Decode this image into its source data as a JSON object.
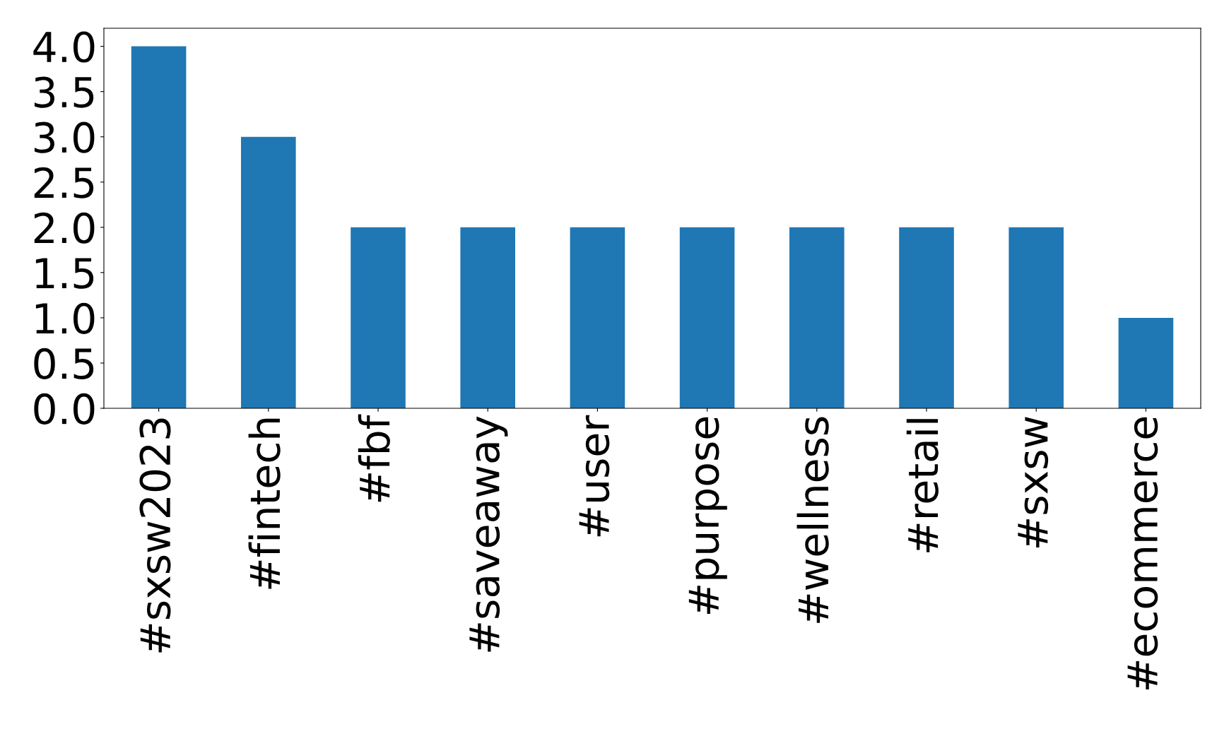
{
  "chart_data": {
    "type": "bar",
    "categories": [
      "#sxsw2023",
      "#fintech",
      "#fbf",
      "#saveaway",
      "#user",
      "#purpose",
      "#wellness",
      "#retail",
      "#sxsw",
      "#ecommerce"
    ],
    "values": [
      4,
      3,
      2,
      2,
      2,
      2,
      2,
      2,
      2,
      1
    ],
    "color": "#1f77b4",
    "ylim": [
      0,
      4.2
    ],
    "yticks": [
      {
        "value": 0,
        "label": "0.0"
      },
      {
        "value": 0.5,
        "label": "0.5"
      },
      {
        "value": 1,
        "label": "1.0"
      },
      {
        "value": 1.5,
        "label": "1.5"
      },
      {
        "value": 2,
        "label": "2.0"
      },
      {
        "value": 2.5,
        "label": "2.5"
      },
      {
        "value": 3,
        "label": "3.0"
      },
      {
        "value": 3.5,
        "label": "3.5"
      },
      {
        "value": 4,
        "label": "4.0"
      }
    ],
    "grid": false,
    "legend": false
  }
}
